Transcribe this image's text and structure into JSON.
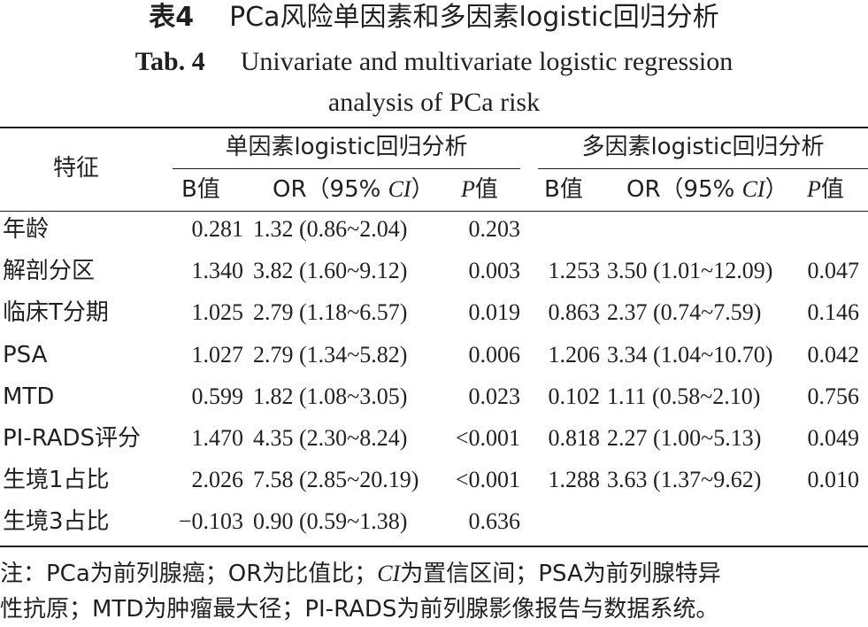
{
  "caption": {
    "cn_label": "表4",
    "cn_title": "PCa风险单因素和多因素logistic回归分析",
    "en_label": "Tab. 4",
    "en_title_line1": "Univariate and multivariate logistic regression",
    "en_title_line2": "analysis of PCa risk"
  },
  "header": {
    "feature": "特征",
    "univariate": "单因素logistic回归分析",
    "multivariate": "多因素logistic回归分析",
    "b": "B值",
    "or_prefix": "OR（95% ",
    "or_ci": "CI",
    "or_suffix": "）",
    "p_letter": "P",
    "p_suffix": "值"
  },
  "rows": [
    {
      "name": "年龄",
      "u_b": "0.281",
      "u_or": "1.32 (0.86~2.04)",
      "u_p": "0.203",
      "m_b": "",
      "m_or": "",
      "m_p": ""
    },
    {
      "name": "解剖分区",
      "u_b": "1.340",
      "u_or": "3.82 (1.60~9.12)",
      "u_p": "0.003",
      "m_b": "1.253",
      "m_or": "3.50 (1.01~12.09)",
      "m_p": "0.047"
    },
    {
      "name": "临床T分期",
      "u_b": "1.025",
      "u_or": "2.79 (1.18~6.57)",
      "u_p": "0.019",
      "m_b": "0.863",
      "m_or": "2.37 (0.74~7.59)",
      "m_p": "0.146"
    },
    {
      "name": "PSA",
      "u_b": "1.027",
      "u_or": "2.79 (1.34~5.82)",
      "u_p": "0.006",
      "m_b": "1.206",
      "m_or": "3.34 (1.04~10.70)",
      "m_p": "0.042"
    },
    {
      "name": "MTD",
      "u_b": "0.599",
      "u_or": "1.82 (1.08~3.05)",
      "u_p": "0.023",
      "m_b": "0.102",
      "m_or": "1.11 (0.58~2.10)",
      "m_p": "0.756"
    },
    {
      "name": "PI-RADS评分",
      "u_b": "1.470",
      "u_or": "4.35 (2.30~8.24)",
      "u_p": "<0.001",
      "m_b": "0.818",
      "m_or": "2.27 (1.00~5.13)",
      "m_p": "0.049"
    },
    {
      "name": "生境1占比",
      "u_b": "2.026",
      "u_or": "7.58 (2.85~20.19)",
      "u_p": "<0.001",
      "m_b": "1.288",
      "m_or": "3.63 (1.37~9.62)",
      "m_p": "0.010"
    },
    {
      "name": "生境3占比",
      "u_b": "−0.103",
      "u_or": "0.90 (0.59~1.38)",
      "u_p": "0.636",
      "m_b": "",
      "m_or": "",
      "m_p": ""
    }
  ],
  "note": {
    "line1_a": "注：PCa为前列腺癌；OR为比值比；",
    "line1_ci": "CI",
    "line1_b": "为置信区间；PSA为前列腺特异",
    "line2": "性抗原；MTD为肿瘤最大径；PI-RADS为前列腺影像报告与数据系统。"
  }
}
